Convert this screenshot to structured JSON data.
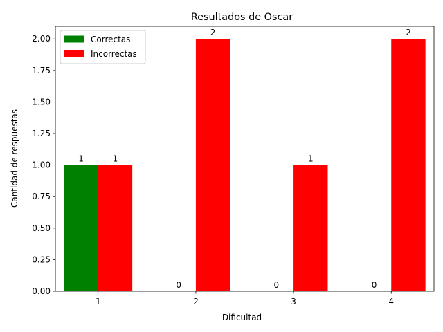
{
  "chart_data": {
    "type": "bar",
    "title": "Resultados de Oscar",
    "xlabel": "Dificultad",
    "ylabel": "Cantidad de respuestas",
    "categories": [
      "1",
      "2",
      "3",
      "4"
    ],
    "series": [
      {
        "name": "Correctas",
        "values": [
          1,
          0,
          0,
          0
        ],
        "color": "#008000"
      },
      {
        "name": "Incorrectas",
        "values": [
          1,
          2,
          1,
          2
        ],
        "color": "#ff0000"
      }
    ],
    "ylim": [
      0,
      2.1
    ],
    "yticks": [
      "0.00",
      "0.25",
      "0.50",
      "0.75",
      "1.00",
      "1.25",
      "1.50",
      "1.75",
      "2.00"
    ],
    "grid": false,
    "legend_position": "top-left"
  }
}
